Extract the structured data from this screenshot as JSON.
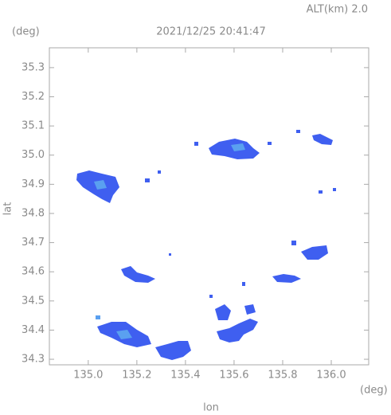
{
  "chart_data": {
    "type": "map",
    "title": "2021/12/25 20:41:47",
    "subtitle": "ALT(km) 2.0",
    "x_label": "lon",
    "x_unit": "(deg)",
    "y_label": "lat",
    "y_unit": "(deg)",
    "xlim": [
      134.84,
      136.154
    ],
    "ylim": [
      34.281,
      35.368
    ],
    "xticks": [
      {
        "value": 135,
        "label": "135.0"
      },
      135.2,
      135.4,
      135.6,
      135.8,
      {
        "value": 136,
        "label": "136.0"
      }
    ],
    "yticks": [
      34.3,
      34.4,
      34.5,
      34.6,
      34.7,
      34.8,
      34.9,
      {
        "value": 35,
        "label": "35.0"
      },
      35.1,
      35.2,
      35.3
    ]
  }
}
